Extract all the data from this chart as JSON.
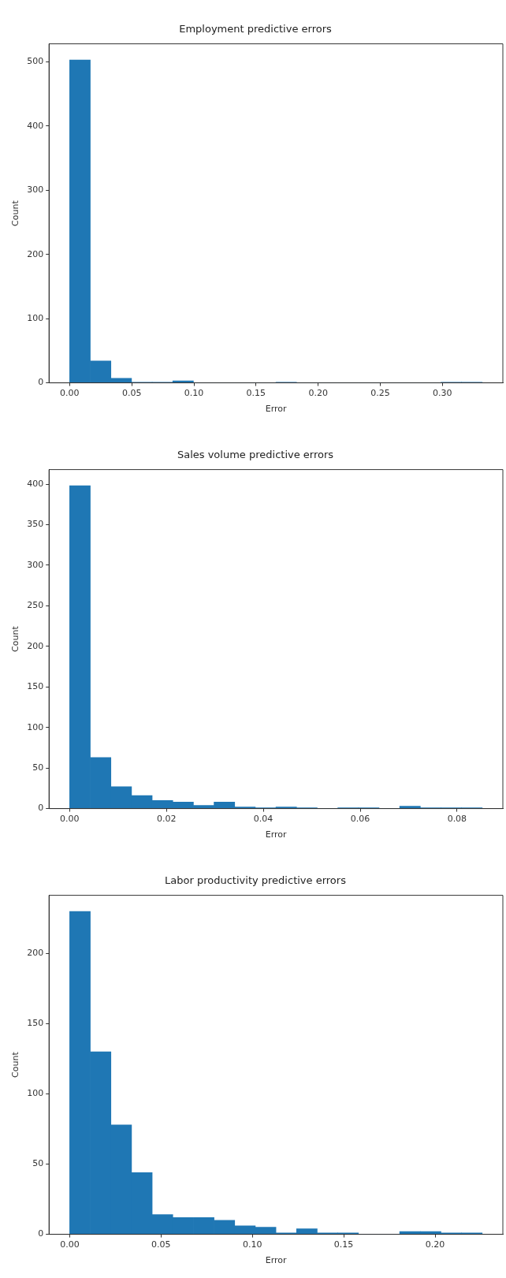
{
  "chart_data": [
    {
      "type": "histogram",
      "title": "Employment predictive errors",
      "xlabel": "Error",
      "ylabel": "Count",
      "color": "#1f77b4",
      "bins": [
        0,
        0.0166,
        0.0332,
        0.0498,
        0.0664,
        0.083,
        0.0996,
        0.1162,
        0.1328,
        0.1494,
        0.166,
        0.1826,
        0.1992,
        0.2158,
        0.2324,
        0.249,
        0.2656,
        0.2822,
        0.2988,
        0.3154,
        0.332
      ],
      "values": [
        503,
        34,
        7,
        1,
        1,
        3,
        0,
        0,
        0,
        0,
        1,
        0,
        0,
        0,
        0,
        0,
        0,
        0,
        1,
        1
      ],
      "xlim": [
        -0.0166,
        0.3486
      ],
      "ylim": [
        0,
        528
      ],
      "xticks": [
        {
          "value": 0,
          "label": "0.00"
        },
        {
          "value": 0.05,
          "label": "0.05"
        },
        {
          "value": 0.1,
          "label": "0.10"
        },
        {
          "value": 0.15,
          "label": "0.15"
        },
        {
          "value": 0.2,
          "label": "0.20"
        },
        {
          "value": 0.25,
          "label": "0.25"
        },
        {
          "value": 0.3,
          "label": "0.30"
        }
      ],
      "yticks": [
        0,
        100,
        200,
        300,
        400,
        500
      ],
      "grid": false,
      "legend": false
    },
    {
      "type": "histogram",
      "title": "Sales volume predictive errors",
      "xlabel": "Error",
      "ylabel": "Count",
      "color": "#1f77b4",
      "bins": [
        0,
        0.00426,
        0.00852,
        0.01278,
        0.01704,
        0.0213,
        0.02556,
        0.02982,
        0.03408,
        0.03834,
        0.0426,
        0.04686,
        0.05112,
        0.05538,
        0.05964,
        0.0639,
        0.06816,
        0.07242,
        0.07668,
        0.08094,
        0.0852
      ],
      "values": [
        398,
        63,
        27,
        16,
        10,
        8,
        4,
        8,
        2,
        1,
        2,
        1,
        0,
        1,
        1,
        0,
        3,
        1,
        1,
        1
      ],
      "xlim": [
        -0.00426,
        0.08946
      ],
      "ylim": [
        0,
        418
      ],
      "xticks": [
        {
          "value": 0,
          "label": "0.00"
        },
        {
          "value": 0.02,
          "label": "0.02"
        },
        {
          "value": 0.04,
          "label": "0.04"
        },
        {
          "value": 0.06,
          "label": "0.06"
        },
        {
          "value": 0.08,
          "label": "0.08"
        }
      ],
      "yticks": [
        0,
        50,
        100,
        150,
        200,
        250,
        300,
        350,
        400
      ],
      "grid": false,
      "legend": false
    },
    {
      "type": "histogram",
      "title": "Labor productivity predictive errors",
      "xlabel": "Error",
      "ylabel": "Count",
      "color": "#1f77b4",
      "bins": [
        0,
        0.01129,
        0.02258,
        0.03387,
        0.04516,
        0.05645,
        0.06774,
        0.07903,
        0.09032,
        0.10161,
        0.1129,
        0.12419,
        0.13548,
        0.14677,
        0.15806,
        0.16935,
        0.18064,
        0.19193,
        0.20322,
        0.21451,
        0.2258
      ],
      "values": [
        230,
        130,
        78,
        44,
        14,
        12,
        12,
        10,
        6,
        5,
        1,
        4,
        1,
        1,
        0,
        0,
        2,
        2,
        1,
        1
      ],
      "xlim": [
        -0.0113,
        0.2371
      ],
      "ylim": [
        0,
        241.5
      ],
      "xticks": [
        {
          "value": 0,
          "label": "0.00"
        },
        {
          "value": 0.05,
          "label": "0.05"
        },
        {
          "value": 0.1,
          "label": "0.10"
        },
        {
          "value": 0.15,
          "label": "0.15"
        },
        {
          "value": 0.2,
          "label": "0.20"
        }
      ],
      "yticks": [
        0,
        50,
        100,
        150,
        200
      ],
      "grid": false,
      "legend": false
    }
  ]
}
